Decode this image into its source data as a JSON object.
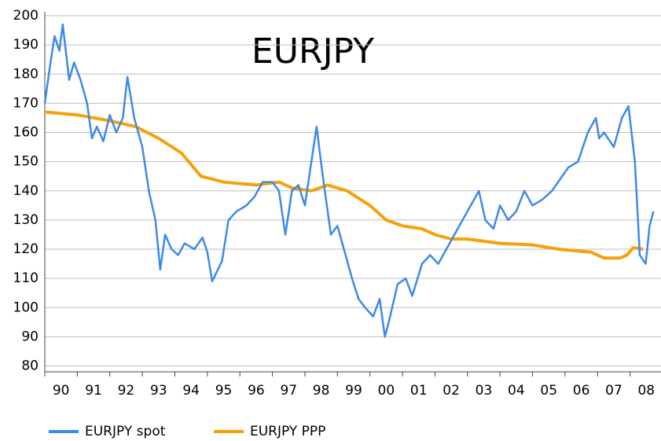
{
  "chart_data": {
    "type": "line",
    "title": "EURJPY",
    "xlim": [
      1990,
      2009
    ],
    "xticks": [
      {
        "value": 1990.5,
        "label": "90"
      },
      {
        "value": 1991.5,
        "label": "91"
      },
      {
        "value": 1992.5,
        "label": "92"
      },
      {
        "value": 1993.5,
        "label": "93"
      },
      {
        "value": 1994.5,
        "label": "94"
      },
      {
        "value": 1995.5,
        "label": "95"
      },
      {
        "value": 1996.5,
        "label": "96"
      },
      {
        "value": 1997.5,
        "label": "97"
      },
      {
        "value": 1998.5,
        "label": "98"
      },
      {
        "value": 1999.5,
        "label": "99"
      },
      {
        "value": 2000.5,
        "label": "00"
      },
      {
        "value": 2001.5,
        "label": "01"
      },
      {
        "value": 2002.5,
        "label": "02"
      },
      {
        "value": 2003.5,
        "label": "03"
      },
      {
        "value": 2004.5,
        "label": "04"
      },
      {
        "value": 2005.5,
        "label": "05"
      },
      {
        "value": 2006.5,
        "label": "06"
      },
      {
        "value": 2007.5,
        "label": "07"
      },
      {
        "value": 2008.5,
        "label": "08"
      }
    ],
    "xtickmarks": [
      1990,
      1991,
      1992,
      1993,
      1994,
      1995,
      1996,
      1997,
      1998,
      1999,
      2000,
      2001,
      2002,
      2003,
      2004,
      2005,
      2006,
      2007,
      2008,
      2009
    ],
    "ylim": [
      78,
      200
    ],
    "yticks": [
      80,
      90,
      100,
      110,
      120,
      130,
      140,
      150,
      160,
      170,
      180,
      190,
      200
    ],
    "grid": true,
    "legend": "bottom",
    "series": [
      {
        "name": "EURJPY spot",
        "color": "#3d8ae8",
        "x": [
          1990.0,
          1990.15,
          1990.3,
          1990.45,
          1990.55,
          1990.75,
          1990.9,
          1991.1,
          1991.3,
          1991.45,
          1991.6,
          1991.8,
          1992.0,
          1992.2,
          1992.4,
          1992.54,
          1992.75,
          1993.0,
          1993.2,
          1993.4,
          1993.55,
          1993.7,
          1993.9,
          1994.1,
          1994.3,
          1994.6,
          1994.85,
          1995.0,
          1995.15,
          1995.45,
          1995.65,
          1995.9,
          1996.2,
          1996.45,
          1996.7,
          1997.0,
          1997.2,
          1997.4,
          1997.6,
          1997.8,
          1998.0,
          1998.2,
          1998.36,
          1998.55,
          1998.8,
          1999.0,
          1999.2,
          1999.45,
          1999.65,
          1999.85,
          2000.1,
          2000.3,
          2000.46,
          2000.6,
          2000.85,
          2001.1,
          2001.3,
          2001.6,
          2001.85,
          2002.1,
          2002.35,
          2002.6,
          2002.85,
          2003.1,
          2003.35,
          2003.55,
          2003.8,
          2004.0,
          2004.25,
          2004.5,
          2004.75,
          2005.0,
          2005.3,
          2005.6,
          2005.85,
          2006.1,
          2006.4,
          2006.7,
          2006.95,
          2007.05,
          2007.2,
          2007.5,
          2007.75,
          2007.95,
          2008.15,
          2008.3,
          2008.48,
          2008.6,
          2008.72
        ],
        "values": [
          170,
          182,
          193,
          188,
          197,
          178,
          184,
          178,
          170,
          158,
          162,
          157,
          166,
          160,
          165,
          179,
          165,
          155,
          140,
          130,
          113,
          125,
          120,
          118,
          122,
          120,
          124,
          119,
          109,
          116,
          130,
          133,
          135,
          138,
          143,
          143,
          140,
          125,
          140,
          142,
          135,
          150,
          162,
          145,
          125,
          128,
          120,
          110,
          103,
          100,
          97,
          103,
          90,
          96,
          108,
          110,
          104,
          115,
          118,
          115,
          120,
          125,
          130,
          135,
          140,
          130,
          127,
          135,
          130,
          133,
          140,
          135,
          137,
          140,
          144,
          148,
          150,
          160,
          165,
          158,
          160,
          155,
          165,
          169,
          150,
          118,
          115,
          128,
          133
        ]
      },
      {
        "name": "EURJPY PPP",
        "color": "#f5a10a",
        "x": [
          1990.0,
          1991.0,
          1992.0,
          1992.8,
          1993.5,
          1994.2,
          1994.8,
          1995.5,
          1996.5,
          1997.2,
          1997.6,
          1998.2,
          1998.7,
          1999.3,
          2000.0,
          2000.5,
          2001.0,
          2001.6,
          2002.0,
          2002.5,
          2003.0,
          2004.0,
          2005.0,
          2005.8,
          2006.8,
          2007.2,
          2007.7,
          2007.9,
          2008.1,
          2008.4
        ],
        "values": [
          167,
          166,
          164,
          162,
          158,
          153,
          145,
          143,
          142,
          143,
          141,
          140,
          142,
          140,
          135,
          130,
          128,
          127,
          125,
          123.5,
          123.5,
          122,
          121.5,
          120,
          119,
          117,
          117,
          118,
          120.5,
          120
        ]
      }
    ]
  }
}
